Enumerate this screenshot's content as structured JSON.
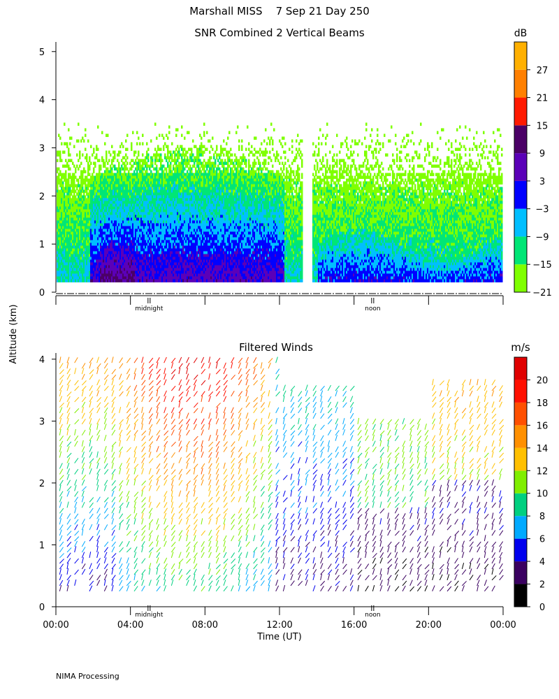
{
  "header": {
    "title": "Marshall MISS    7 Sep 21 Day 250"
  },
  "footer": {
    "credit": "NIMA Processing"
  },
  "shared": {
    "ylabel": "Altitude (km)",
    "xlabel": "Time (UT)",
    "midnight_label": "midnight",
    "noon_label": "noon"
  },
  "chart_data": [
    {
      "id": "snr",
      "type": "heatmap",
      "title": "SNR Combined 2 Vertical Beams",
      "ylim": [
        0,
        5.2
      ],
      "xlim_hours": [
        0,
        24
      ],
      "yticks": [
        0,
        1,
        2,
        3,
        4,
        5
      ],
      "colorbar": {
        "unit": "dB",
        "ticks": [
          -21,
          -15,
          -9,
          -3,
          3,
          9,
          15,
          21,
          27
        ],
        "levels": [
          -21,
          -15,
          -9,
          -3,
          3,
          9,
          15,
          21,
          27,
          33
        ],
        "colors": [
          "#7fff00",
          "#00e676",
          "#00bfff",
          "#0000ff",
          "#5b00b8",
          "#4b0066",
          "#ff1a00",
          "#ff8000",
          "#ffb000"
        ]
      },
      "data_range_km": [
        0.25,
        5.15
      ],
      "gap_hours": [
        13.2,
        13.7
      ]
    },
    {
      "id": "winds",
      "type": "scatter",
      "title": "Filtered Winds",
      "ylim": [
        0,
        4.1
      ],
      "xlim_hours": [
        0,
        24
      ],
      "yticks": [
        0,
        1,
        2,
        3,
        4
      ],
      "xtick_labels": [
        "00:00",
        "04:00",
        "08:00",
        "12:00",
        "16:00",
        "20:00",
        "00:00"
      ],
      "colorbar": {
        "unit": "m/s",
        "ticks": [
          0,
          2,
          4,
          6,
          8,
          10,
          12,
          14,
          16,
          18,
          20
        ],
        "levels": [
          0,
          2,
          4,
          6,
          8,
          10,
          12,
          14,
          16,
          18,
          20,
          22
        ],
        "colors": [
          "#000000",
          "#3a0060",
          "#0000ee",
          "#00aaff",
          "#00d080",
          "#80ee00",
          "#ffc000",
          "#ff9000",
          "#ff5000",
          "#ff1000",
          "#e00000"
        ]
      }
    }
  ]
}
